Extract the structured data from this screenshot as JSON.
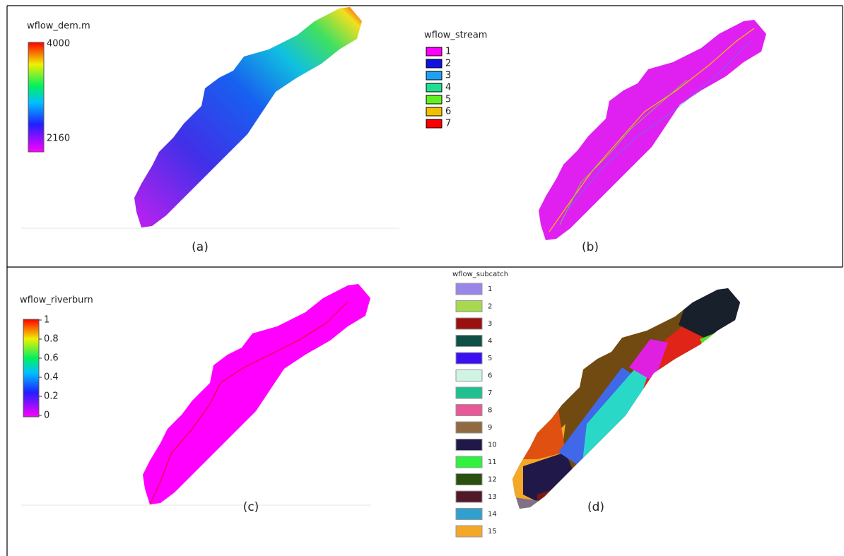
{
  "panels": [
    {
      "title": "wflow_dem.m",
      "caption": "(a)",
      "colorbar_labels": [
        "4000",
        "2160"
      ]
    },
    {
      "title": "wflow_stream",
      "caption": "(b)",
      "legend": [
        {
          "label": "1",
          "color": "#ff00ff"
        },
        {
          "label": "2",
          "color": "#1010e0"
        },
        {
          "label": "3",
          "color": "#20a0f0"
        },
        {
          "label": "4",
          "color": "#20e090"
        },
        {
          "label": "5",
          "color": "#60f020"
        },
        {
          "label": "6",
          "color": "#f0c000"
        },
        {
          "label": "7",
          "color": "#ff0000"
        }
      ]
    },
    {
      "title": "wflow_riverburn",
      "caption": "(c)",
      "colorbar_labels": [
        "1",
        "0.8",
        "0.6",
        "0.4",
        "0.2",
        "0"
      ]
    },
    {
      "title": "wflow_subcatch",
      "caption": "(d)",
      "legend": [
        {
          "label": "1",
          "color": "#9a86e8"
        },
        {
          "label": "2",
          "color": "#a8d850"
        },
        {
          "label": "3",
          "color": "#9a1010"
        },
        {
          "label": "4",
          "color": "#0e5048"
        },
        {
          "label": "5",
          "color": "#3a10f0"
        },
        {
          "label": "6",
          "color": "#d0f4e4"
        },
        {
          "label": "7",
          "color": "#20c090"
        },
        {
          "label": "8",
          "color": "#e85898"
        },
        {
          "label": "9",
          "color": "#906a40"
        },
        {
          "label": "10",
          "color": "#201848"
        },
        {
          "label": "11",
          "color": "#30f040"
        },
        {
          "label": "12",
          "color": "#2a5010"
        },
        {
          "label": "13",
          "color": "#501828"
        },
        {
          "label": "14",
          "color": "#30a0d0"
        },
        {
          "label": "15",
          "color": "#f4a828"
        }
      ]
    }
  ]
}
